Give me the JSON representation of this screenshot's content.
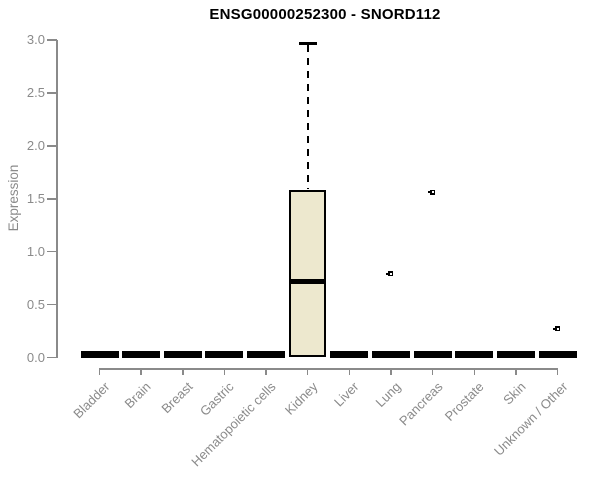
{
  "chart_data": {
    "type": "box",
    "title": "ENSG00000252300 - SNORD112",
    "ylabel": "Expression",
    "xlabel": "",
    "ylim": [
      0.0,
      3.0
    ],
    "grid": false,
    "legend": null,
    "ytick_values": [
      0,
      0.5,
      1,
      1.5,
      2,
      2.5,
      3
    ],
    "ytick_labels": [
      "0.0",
      "0.5",
      "1.0",
      "1.5",
      "2.0",
      "2.5",
      "3.0"
    ],
    "categories": [
      "Bladder",
      "Brain",
      "Breast",
      "Gastric",
      "Hematopoietic cells",
      "Kidney",
      "Liver",
      "Lung",
      "Pancreas",
      "Prostate",
      "Skin",
      "Unknown / Other"
    ],
    "boxes": [
      {
        "category": "Bladder",
        "q1": 0,
        "median": 0,
        "q3": 0,
        "whisker_low": 0,
        "whisker_high": 0,
        "outliers": []
      },
      {
        "category": "Brain",
        "q1": 0,
        "median": 0,
        "q3": 0,
        "whisker_low": 0,
        "whisker_high": 0,
        "outliers": []
      },
      {
        "category": "Breast",
        "q1": 0,
        "median": 0,
        "q3": 0,
        "whisker_low": 0,
        "whisker_high": 0,
        "outliers": []
      },
      {
        "category": "Gastric",
        "q1": 0,
        "median": 0,
        "q3": 0,
        "whisker_low": 0,
        "whisker_high": 0,
        "outliers": []
      },
      {
        "category": "Hematopoietic cells",
        "q1": 0,
        "median": 0,
        "q3": 0,
        "whisker_low": 0,
        "whisker_high": 0,
        "outliers": []
      },
      {
        "category": "Kidney",
        "q1": 0,
        "median": 0.72,
        "q3": 1.58,
        "whisker_low": 0,
        "whisker_high": 2.97,
        "outliers": []
      },
      {
        "category": "Liver",
        "q1": 0,
        "median": 0,
        "q3": 0,
        "whisker_low": 0,
        "whisker_high": 0,
        "outliers": []
      },
      {
        "category": "Lung",
        "q1": 0,
        "median": 0,
        "q3": 0,
        "whisker_low": 0,
        "whisker_high": 0,
        "outliers": [
          0.79
        ]
      },
      {
        "category": "Pancreas",
        "q1": 0,
        "median": 0,
        "q3": 0,
        "whisker_low": 0,
        "whisker_high": 0,
        "outliers": [
          1.56
        ]
      },
      {
        "category": "Prostate",
        "q1": 0,
        "median": 0,
        "q3": 0,
        "whisker_low": 0,
        "whisker_high": 0,
        "outliers": []
      },
      {
        "category": "Skin",
        "q1": 0,
        "median": 0,
        "q3": 0,
        "whisker_low": 0,
        "whisker_high": 0,
        "outliers": []
      },
      {
        "category": "Unknown / Other",
        "q1": 0,
        "median": 0,
        "q3": 0,
        "whisker_low": 0,
        "whisker_high": 0,
        "outliers": [
          0.27
        ]
      }
    ],
    "colors": {
      "box_fill": "#ede8ce",
      "box_border": "#000000",
      "axis": "#8a8a8a",
      "tick_label": "#8a8a8a",
      "title_color": "#000000",
      "background": "#ffffff"
    }
  }
}
